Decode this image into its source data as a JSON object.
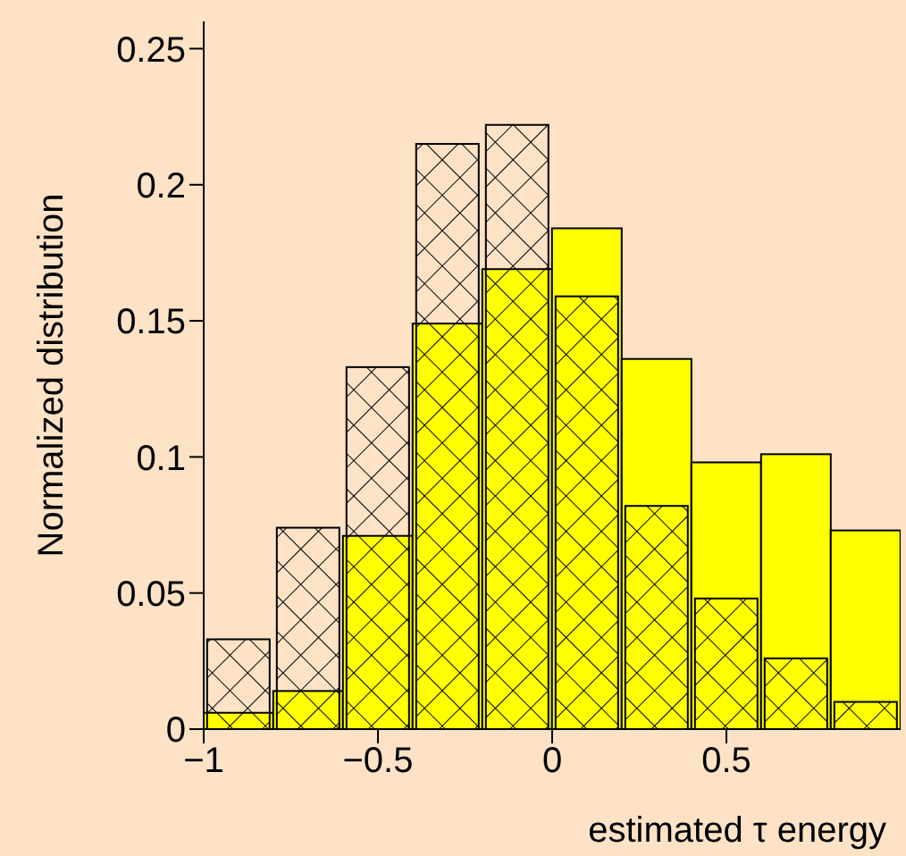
{
  "chart_data": {
    "type": "histogram",
    "xlabel": "estimated τ energy",
    "ylabel": "Normalized distribution",
    "bins": [
      -1,
      -0.8,
      -0.6,
      -0.4,
      -0.2,
      0,
      0.2,
      0.4,
      0.6,
      0.8,
      1
    ],
    "series": [
      {
        "color": "#ffff00",
        "values": [
          0.006,
          0.014,
          0.071,
          0.149,
          0.169,
          0.184,
          0.136,
          0.098,
          0.101,
          0.073
        ]
      },
      {
        "color": "#000000",
        "values": [
          0.033,
          0.074,
          0.133,
          0.215,
          0.222,
          0.159,
          0.082,
          0.048,
          0.026,
          0.01
        ]
      }
    ],
    "xlim": [
      -1,
      1
    ],
    "xticks": [
      {
        "value": -1,
        "label": "−1"
      },
      {
        "value": -0.5,
        "label": "−0.5"
      },
      0,
      0.5
    ],
    "ylim": [
      0,
      0.26
    ],
    "yticks": [
      0,
      0.05,
      0.1,
      0.15,
      0.2,
      0.25
    ]
  }
}
